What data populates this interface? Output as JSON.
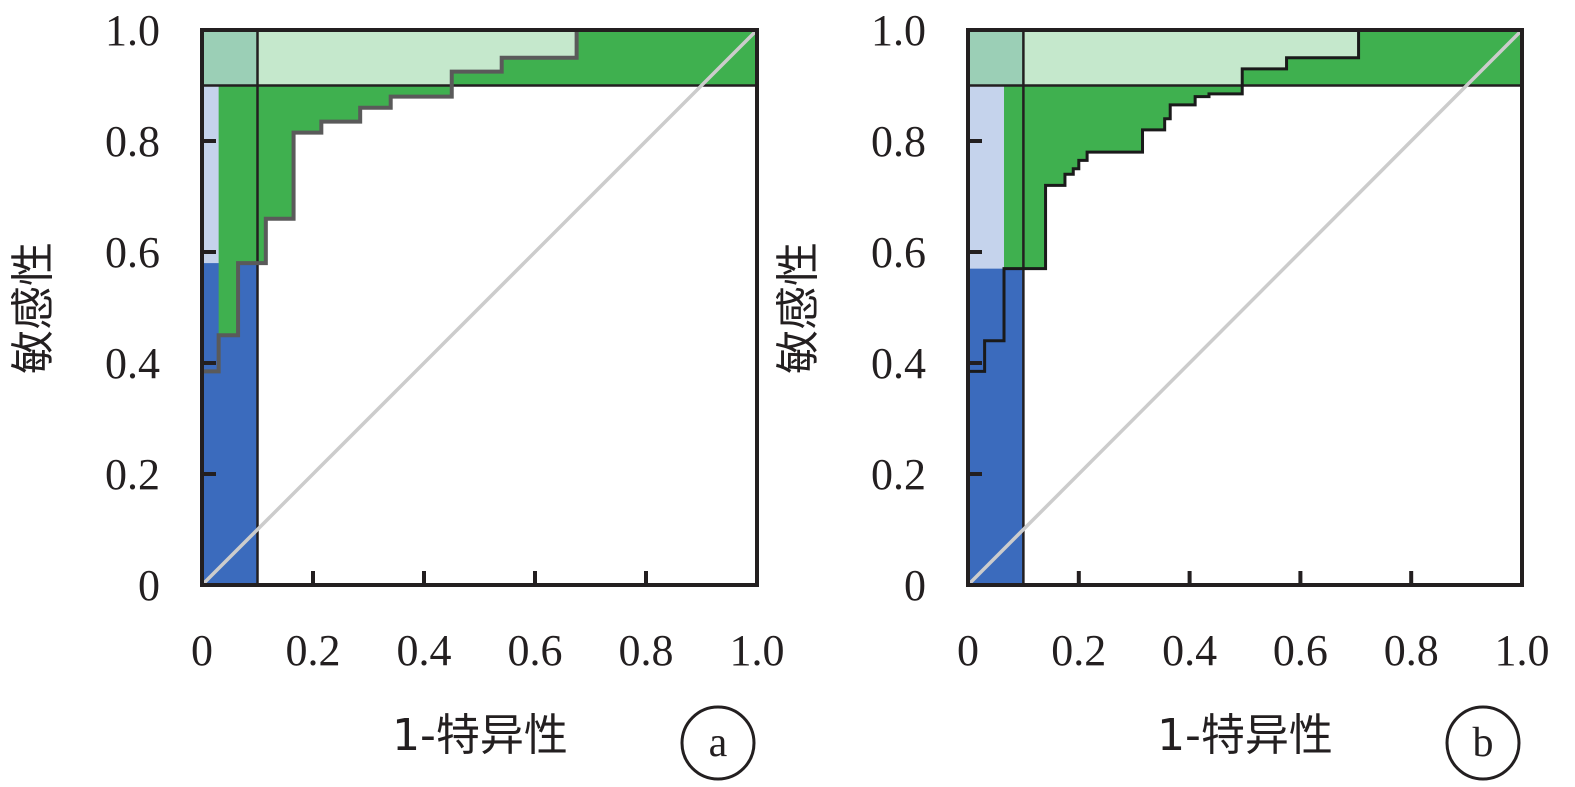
{
  "colors": {
    "dark_blue": "#3b6bbd",
    "light_blue": "#c5d3ec",
    "dark_green": "#3fb04f",
    "light_green": "#c5e8cc",
    "teal_overlap": "#9bcfb6",
    "roc_a": "#5a5a5a",
    "roc_b": "#1a1a1a",
    "diagonal": "#cccccc",
    "frame": "#231f20"
  },
  "chart_data": [
    {
      "type": "line",
      "panel_label": "a",
      "xlabel": "1-特异性",
      "ylabel": "敏感性",
      "xlim": [
        0,
        1
      ],
      "ylim": [
        0,
        1
      ],
      "x_tick_labels": [
        "0",
        "0.2",
        "0.4",
        "0.6",
        "0.8",
        "1.0"
      ],
      "y_tick_labels": [
        "0",
        "0.2",
        "0.4",
        "0.6",
        "0.8",
        "1.0"
      ],
      "x_ticks": [
        0,
        0.2,
        0.4,
        0.6,
        0.8,
        1.0
      ],
      "y_ticks": [
        0,
        0.2,
        0.4,
        0.6,
        0.8,
        1.0
      ],
      "threshold_lines": {
        "specificity_x": 0.1,
        "sensitivity_y": 0.9
      },
      "regions": {
        "high_specificity_band": {
          "x": [
            0,
            0.1
          ],
          "y": [
            0,
            1.0
          ]
        },
        "high_sensitivity_band": {
          "x": [
            0,
            1.0
          ],
          "y": [
            0.9,
            1.0
          ]
        },
        "roc_within_spec_band_upto": 0.58,
        "roc_within_sens_band_from": 0.45
      },
      "reference_line": {
        "x": [
          0,
          1
        ],
        "y": [
          0,
          1
        ]
      },
      "roc_curve": {
        "x": [
          0,
          0.03,
          0.03,
          0.065,
          0.065,
          0.115,
          0.115,
          0.165,
          0.165,
          0.215,
          0.215,
          0.285,
          0.285,
          0.34,
          0.34,
          0.45,
          0.45,
          0.54,
          0.54,
          0.675,
          0.675
        ],
        "y": [
          0.385,
          0.385,
          0.45,
          0.45,
          0.58,
          0.58,
          0.66,
          0.66,
          0.815,
          0.815,
          0.835,
          0.835,
          0.86,
          0.86,
          0.88,
          0.88,
          0.925,
          0.925,
          0.95,
          0.95,
          1.0
        ]
      }
    },
    {
      "type": "line",
      "panel_label": "b",
      "xlabel": "1-特异性",
      "ylabel": "敏感性",
      "xlim": [
        0,
        1
      ],
      "ylim": [
        0,
        1
      ],
      "x_tick_labels": [
        "0",
        "0.2",
        "0.4",
        "0.6",
        "0.8",
        "1.0"
      ],
      "y_tick_labels": [
        "0",
        "0.2",
        "0.4",
        "0.6",
        "0.8",
        "1.0"
      ],
      "x_ticks": [
        0,
        0.2,
        0.4,
        0.6,
        0.8,
        1.0
      ],
      "y_ticks": [
        0,
        0.2,
        0.4,
        0.6,
        0.8,
        1.0
      ],
      "threshold_lines": {
        "specificity_x": 0.1,
        "sensitivity_y": 0.9
      },
      "regions": {
        "high_specificity_band": {
          "x": [
            0,
            0.1
          ],
          "y": [
            0,
            1.0
          ]
        },
        "high_sensitivity_band": {
          "x": [
            0,
            1.0
          ],
          "y": [
            0.9,
            1.0
          ]
        },
        "roc_within_spec_band_upto": 0.57,
        "roc_within_sens_band_from": 0.5
      },
      "reference_line": {
        "x": [
          0,
          1
        ],
        "y": [
          0,
          1
        ]
      },
      "roc_curve": {
        "x": [
          0,
          0.03,
          0.03,
          0.065,
          0.065,
          0.14,
          0.14,
          0.175,
          0.175,
          0.19,
          0.19,
          0.2,
          0.2,
          0.215,
          0.215,
          0.315,
          0.315,
          0.355,
          0.355,
          0.365,
          0.365,
          0.41,
          0.41,
          0.435,
          0.435,
          0.495,
          0.495,
          0.575,
          0.575,
          0.705,
          0.705
        ],
        "y": [
          0.385,
          0.385,
          0.44,
          0.44,
          0.57,
          0.57,
          0.72,
          0.72,
          0.74,
          0.74,
          0.75,
          0.75,
          0.765,
          0.765,
          0.78,
          0.78,
          0.82,
          0.82,
          0.84,
          0.84,
          0.865,
          0.865,
          0.88,
          0.88,
          0.885,
          0.885,
          0.93,
          0.93,
          0.95,
          0.95,
          1.0
        ]
      }
    }
  ]
}
